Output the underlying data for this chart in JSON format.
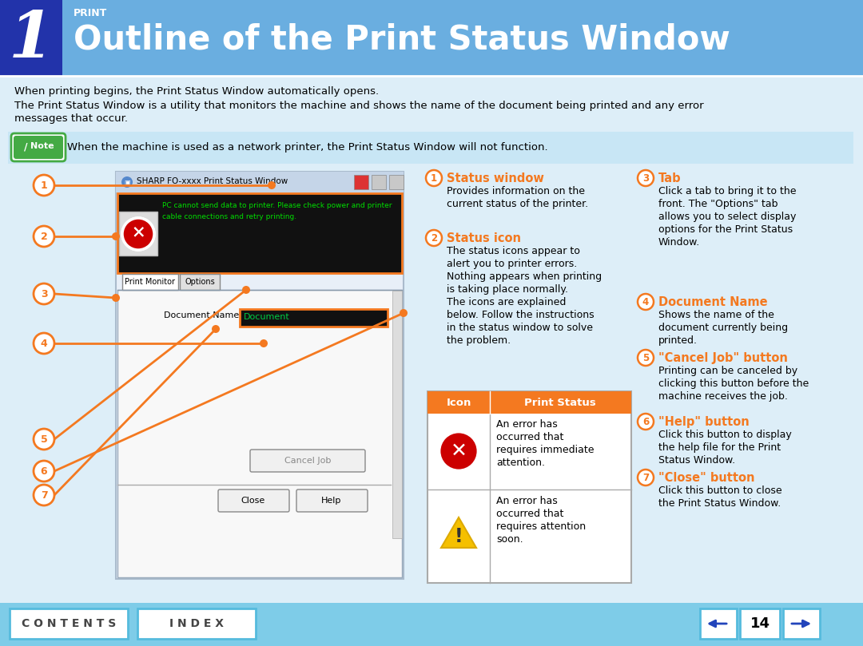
{
  "title": "Outline of the Print Status Window",
  "subtitle": "PRINT",
  "chapter_num": "1",
  "header_bg": "#6aaee0",
  "header_dark_bg": "#2233aa",
  "body_bg": "#ddeef8",
  "note_bg": "#c8e6f5",
  "footer_bg": "#7ecce8",
  "orange": "#f47920",
  "dark_blue": "#2244bb",
  "note_text": "When the machine is used as a network printer, the Print Status Window will not function.",
  "intro_text1": "When printing begins, the Print Status Window automatically opens.",
  "intro_text2": "The Print Status Window is a utility that monitors the machine and shows the name of the document being printed and any error\nmessages that occur.",
  "items": [
    {
      "num": "1",
      "title": "Status window",
      "text": "Provides information on the\ncurrent status of the printer."
    },
    {
      "num": "2",
      "title": "Status icon",
      "text": "The status icons appear to\nalert you to printer errors.\nNothing appears when printing\nis taking place normally.\nThe icons are explained\nbelow. Follow the instructions\nin the status window to solve\nthe problem."
    },
    {
      "num": "3",
      "title": "Tab",
      "text": "Click a tab to bring it to the\nfront. The \"Options\" tab\nallows you to select display\noptions for the Print Status\nWindow."
    },
    {
      "num": "4",
      "title": "Document Name",
      "text": "Shows the name of the\ndocument currently being\nprinted."
    },
    {
      "num": "5",
      "title": "\"Cancel Job\" button",
      "text": "Printing can be canceled by\nclicking this button before the\nmachine receives the job."
    },
    {
      "num": "6",
      "title": "\"Help\" button",
      "text": "Click this button to display\nthe help file for the Print\nStatus Window."
    },
    {
      "num": "7",
      "title": "\"Close\" button",
      "text": "Click this button to close\nthe Print Status Window."
    }
  ],
  "table_header_bg": "#f47920",
  "table_row1_text": "An error has\noccurred that\nrequires immediate\nattention.",
  "table_row2_text": "An error has\noccurred that\nrequires attention\nsoon.",
  "footer_contents": "C O N T E N T S",
  "footer_index": "I N D E X",
  "footer_page": "14"
}
